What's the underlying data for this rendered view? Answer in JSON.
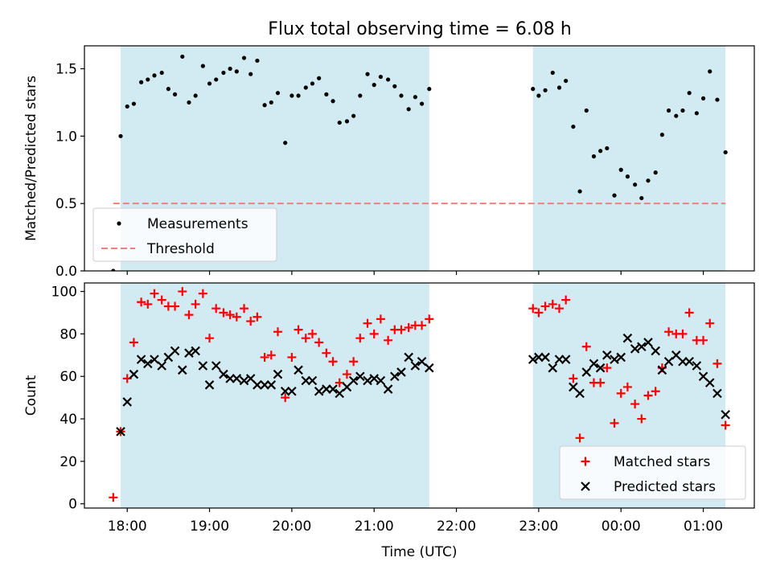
{
  "figure": {
    "title": "Flux total observing time = 6.08 h"
  },
  "chart_data": [
    {
      "type": "scatter",
      "panel": "top",
      "title": "Flux total observing time = 6.08 h",
      "xlabel": "",
      "ylabel": "Matched/Predicted stars",
      "x_unit": "hours since 18:00 UTC",
      "xlim": [
        -0.52,
        7.62
      ],
      "ylim": [
        0,
        1.67
      ],
      "yticks": [
        0.0,
        0.5,
        1.0,
        1.5
      ],
      "ytick_labels": [
        "0.0",
        "0.5",
        "1.0",
        "1.5"
      ],
      "shaded_intervals": [
        [
          -0.08,
          3.67
        ],
        [
          4.93,
          7.27
        ]
      ],
      "shade_color": "#add8e6",
      "legend": {
        "position": "lower-left",
        "entries": [
          "Measurements",
          "Threshold"
        ]
      },
      "series": [
        {
          "name": "Measurements",
          "marker": "dot",
          "color": "#000000",
          "points": [
            [
              -0.17,
              0.0
            ],
            [
              -0.08,
              1.0
            ],
            [
              0.0,
              1.22
            ],
            [
              0.08,
              1.24
            ],
            [
              0.17,
              1.4
            ],
            [
              0.25,
              1.42
            ],
            [
              0.33,
              1.45
            ],
            [
              0.42,
              1.47
            ],
            [
              0.5,
              1.35
            ],
            [
              0.58,
              1.31
            ],
            [
              0.67,
              1.59
            ],
            [
              0.75,
              1.25
            ],
            [
              0.83,
              1.3
            ],
            [
              0.92,
              1.52
            ],
            [
              1.0,
              1.39
            ],
            [
              1.08,
              1.42
            ],
            [
              1.17,
              1.47
            ],
            [
              1.25,
              1.5
            ],
            [
              1.33,
              1.48
            ],
            [
              1.42,
              1.58
            ],
            [
              1.5,
              1.46
            ],
            [
              1.58,
              1.56
            ],
            [
              1.67,
              1.23
            ],
            [
              1.75,
              1.25
            ],
            [
              1.83,
              1.32
            ],
            [
              1.92,
              0.95
            ],
            [
              2.0,
              1.3
            ],
            [
              2.08,
              1.3
            ],
            [
              2.17,
              1.36
            ],
            [
              2.25,
              1.39
            ],
            [
              2.33,
              1.43
            ],
            [
              2.42,
              1.31
            ],
            [
              2.5,
              1.26
            ],
            [
              2.58,
              1.1
            ],
            [
              2.67,
              1.11
            ],
            [
              2.75,
              1.15
            ],
            [
              2.83,
              1.3
            ],
            [
              2.92,
              1.46
            ],
            [
              3.0,
              1.38
            ],
            [
              3.08,
              1.44
            ],
            [
              3.17,
              1.42
            ],
            [
              3.25,
              1.37
            ],
            [
              3.33,
              1.3
            ],
            [
              3.42,
              1.2
            ],
            [
              3.5,
              1.29
            ],
            [
              3.58,
              1.24
            ],
            [
              3.67,
              1.35
            ],
            [
              4.93,
              1.35
            ],
            [
              5.0,
              1.3
            ],
            [
              5.08,
              1.34
            ],
            [
              5.17,
              1.47
            ],
            [
              5.25,
              1.36
            ],
            [
              5.33,
              1.41
            ],
            [
              5.42,
              1.07
            ],
            [
              5.5,
              0.59
            ],
            [
              5.58,
              1.19
            ],
            [
              5.67,
              0.85
            ],
            [
              5.75,
              0.89
            ],
            [
              5.83,
              0.91
            ],
            [
              5.92,
              0.56
            ],
            [
              6.0,
              0.75
            ],
            [
              6.08,
              0.7
            ],
            [
              6.17,
              0.64
            ],
            [
              6.25,
              0.54
            ],
            [
              6.33,
              0.67
            ],
            [
              6.42,
              0.73
            ],
            [
              6.5,
              1.01
            ],
            [
              6.58,
              1.19
            ],
            [
              6.67,
              1.15
            ],
            [
              6.75,
              1.19
            ],
            [
              6.83,
              1.32
            ],
            [
              6.92,
              1.17
            ],
            [
              7.0,
              1.28
            ],
            [
              7.08,
              1.48
            ],
            [
              7.17,
              1.27
            ],
            [
              7.27,
              0.88
            ]
          ]
        },
        {
          "name": "Threshold",
          "type": "line",
          "style": "dashed",
          "color": "#f08080",
          "points": [
            [
              -0.17,
              0.5
            ],
            [
              7.27,
              0.5
            ]
          ]
        }
      ]
    },
    {
      "type": "scatter",
      "panel": "bottom",
      "xlabel": "Time (UTC)",
      "ylabel": "Count",
      "x_unit": "hours since 18:00 UTC",
      "xlim": [
        -0.52,
        7.62
      ],
      "ylim": [
        -2,
        104
      ],
      "xticks": [
        0,
        1,
        2,
        3,
        4,
        5,
        6,
        7
      ],
      "xtick_labels": [
        "18:00",
        "19:00",
        "20:00",
        "21:00",
        "22:00",
        "23:00",
        "00:00",
        "01:00"
      ],
      "yticks": [
        0,
        20,
        40,
        60,
        80,
        100
      ],
      "ytick_labels": [
        "0",
        "20",
        "40",
        "60",
        "80",
        "100"
      ],
      "shaded_intervals": [
        [
          -0.08,
          3.67
        ],
        [
          4.93,
          7.27
        ]
      ],
      "shade_color": "#add8e6",
      "legend": {
        "position": "lower-right",
        "entries": [
          "Matched stars",
          "Predicted stars"
        ]
      },
      "series": [
        {
          "name": "Matched stars",
          "marker": "plus",
          "color": "#ff0000",
          "points": [
            [
              -0.17,
              3
            ],
            [
              -0.08,
              34
            ],
            [
              0.0,
              59
            ],
            [
              0.08,
              76
            ],
            [
              0.17,
              95
            ],
            [
              0.25,
              94
            ],
            [
              0.33,
              99
            ],
            [
              0.42,
              96
            ],
            [
              0.5,
              93
            ],
            [
              0.58,
              93
            ],
            [
              0.67,
              100
            ],
            [
              0.75,
              89
            ],
            [
              0.83,
              94
            ],
            [
              0.92,
              99
            ],
            [
              1.0,
              78
            ],
            [
              1.08,
              92
            ],
            [
              1.17,
              90
            ],
            [
              1.25,
              89
            ],
            [
              1.33,
              88
            ],
            [
              1.42,
              92
            ],
            [
              1.5,
              86
            ],
            [
              1.58,
              88
            ],
            [
              1.67,
              69
            ],
            [
              1.75,
              70
            ],
            [
              1.83,
              81
            ],
            [
              1.92,
              50
            ],
            [
              2.0,
              69
            ],
            [
              2.08,
              82
            ],
            [
              2.17,
              78
            ],
            [
              2.25,
              80
            ],
            [
              2.33,
              76
            ],
            [
              2.42,
              71
            ],
            [
              2.5,
              67
            ],
            [
              2.58,
              57
            ],
            [
              2.67,
              61
            ],
            [
              2.75,
              67
            ],
            [
              2.83,
              78
            ],
            [
              2.92,
              85
            ],
            [
              3.0,
              80
            ],
            [
              3.08,
              87
            ],
            [
              3.17,
              77
            ],
            [
              3.25,
              82
            ],
            [
              3.33,
              82
            ],
            [
              3.42,
              83
            ],
            [
              3.5,
              84
            ],
            [
              3.58,
              84
            ],
            [
              3.67,
              87
            ],
            [
              4.93,
              92
            ],
            [
              5.0,
              90
            ],
            [
              5.08,
              93
            ],
            [
              5.17,
              94
            ],
            [
              5.25,
              92
            ],
            [
              5.33,
              96
            ],
            [
              5.42,
              59
            ],
            [
              5.5,
              31
            ],
            [
              5.58,
              74
            ],
            [
              5.67,
              57
            ],
            [
              5.75,
              57
            ],
            [
              5.83,
              64
            ],
            [
              5.92,
              38
            ],
            [
              6.0,
              52
            ],
            [
              6.08,
              55
            ],
            [
              6.17,
              47
            ],
            [
              6.25,
              40
            ],
            [
              6.33,
              51
            ],
            [
              6.42,
              53
            ],
            [
              6.5,
              64
            ],
            [
              6.58,
              81
            ],
            [
              6.67,
              80
            ],
            [
              6.75,
              80
            ],
            [
              6.83,
              90
            ],
            [
              6.92,
              77
            ],
            [
              7.0,
              77
            ],
            [
              7.08,
              85
            ],
            [
              7.17,
              66
            ],
            [
              7.27,
              37
            ]
          ]
        },
        {
          "name": "Predicted stars",
          "marker": "x",
          "color": "#000000",
          "points": [
            [
              -0.08,
              34
            ],
            [
              0.0,
              48
            ],
            [
              0.08,
              61
            ],
            [
              0.17,
              68
            ],
            [
              0.25,
              66
            ],
            [
              0.33,
              68
            ],
            [
              0.42,
              65
            ],
            [
              0.5,
              69
            ],
            [
              0.58,
              72
            ],
            [
              0.67,
              63
            ],
            [
              0.75,
              71
            ],
            [
              0.83,
              72
            ],
            [
              0.92,
              65
            ],
            [
              1.0,
              56
            ],
            [
              1.08,
              65
            ],
            [
              1.17,
              61
            ],
            [
              1.25,
              59
            ],
            [
              1.33,
              59
            ],
            [
              1.42,
              58
            ],
            [
              1.5,
              59
            ],
            [
              1.58,
              56
            ],
            [
              1.67,
              56
            ],
            [
              1.75,
              56
            ],
            [
              1.83,
              61
            ],
            [
              1.92,
              53
            ],
            [
              2.0,
              53
            ],
            [
              2.08,
              63
            ],
            [
              2.17,
              58
            ],
            [
              2.25,
              58
            ],
            [
              2.33,
              53
            ],
            [
              2.42,
              54
            ],
            [
              2.5,
              54
            ],
            [
              2.58,
              52
            ],
            [
              2.67,
              55
            ],
            [
              2.75,
              58
            ],
            [
              2.83,
              60
            ],
            [
              2.92,
              58
            ],
            [
              3.0,
              59
            ],
            [
              3.08,
              58
            ],
            [
              3.17,
              54
            ],
            [
              3.25,
              60
            ],
            [
              3.33,
              62
            ],
            [
              3.42,
              69
            ],
            [
              3.5,
              65
            ],
            [
              3.58,
              67
            ],
            [
              3.67,
              64
            ],
            [
              4.93,
              68
            ],
            [
              5.0,
              69
            ],
            [
              5.08,
              69
            ],
            [
              5.17,
              64
            ],
            [
              5.25,
              68
            ],
            [
              5.33,
              68
            ],
            [
              5.42,
              55
            ],
            [
              5.5,
              52
            ],
            [
              5.58,
              62
            ],
            [
              5.67,
              66
            ],
            [
              5.75,
              64
            ],
            [
              5.83,
              70
            ],
            [
              5.92,
              68
            ],
            [
              6.0,
              69
            ],
            [
              6.08,
              78
            ],
            [
              6.17,
              73
            ],
            [
              6.25,
              74
            ],
            [
              6.33,
              76
            ],
            [
              6.42,
              72
            ],
            [
              6.5,
              63
            ],
            [
              6.58,
              67
            ],
            [
              6.67,
              70
            ],
            [
              6.75,
              67
            ],
            [
              6.83,
              67
            ],
            [
              6.92,
              65
            ],
            [
              7.0,
              60
            ],
            [
              7.08,
              57
            ],
            [
              7.17,
              52
            ],
            [
              7.27,
              42
            ]
          ]
        }
      ]
    }
  ]
}
